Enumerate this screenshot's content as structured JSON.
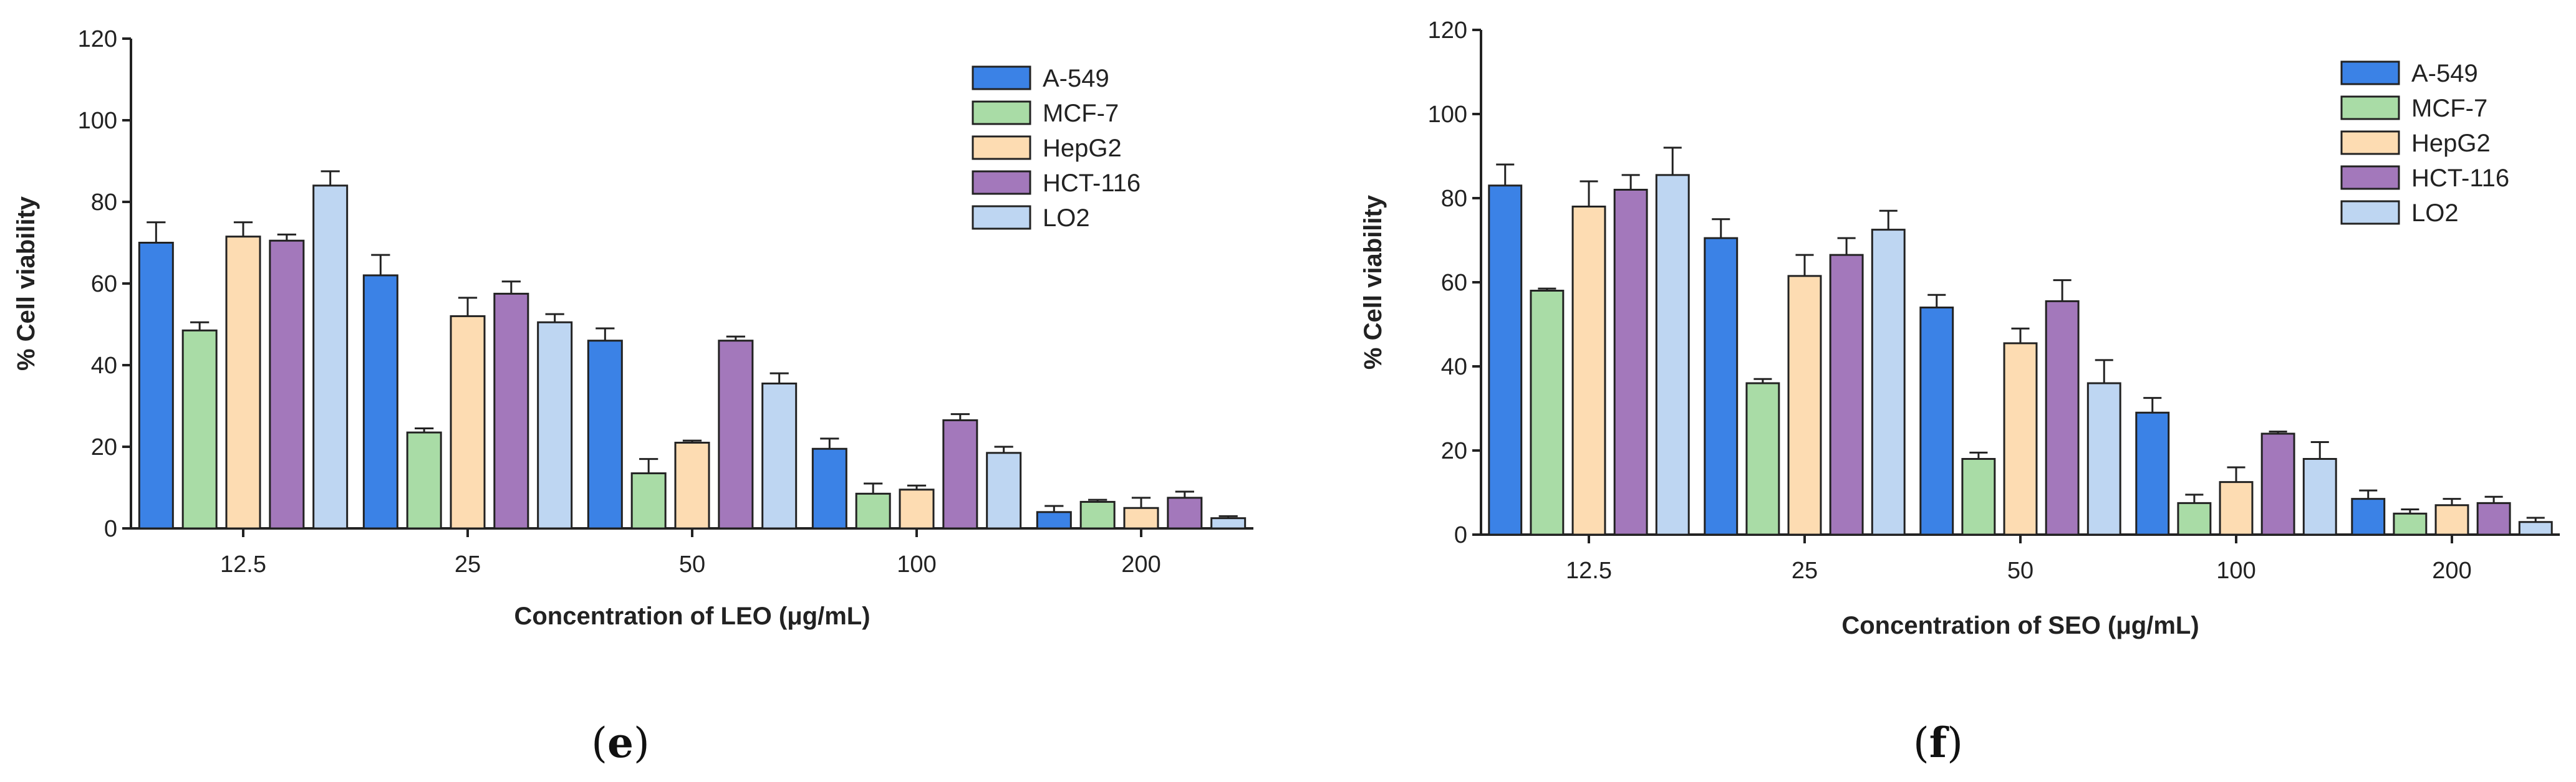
{
  "series_colors": {
    "A-549": "#3b82e6",
    "MCF-7": "#a9dca6",
    "HepG2": "#fddcb2",
    "HCT-116": "#a378bb",
    "LO2": "#bed6f2"
  },
  "chart_data": [
    {
      "type": "bar",
      "panel_label": "(e)",
      "title": "",
      "xlabel": "Concentration of LEO (μg/mL)",
      "ylabel": "% Cell viability",
      "ylim": [
        0,
        120
      ],
      "yticks": [
        0,
        20,
        40,
        60,
        80,
        100,
        120
      ],
      "categories": [
        "12.5",
        "25",
        "50",
        "100",
        "200"
      ],
      "legend_position": "top-right",
      "series": [
        {
          "name": "A-549",
          "values": [
            70,
            62,
            46,
            19.5,
            4
          ],
          "errors": [
            5,
            5,
            3,
            2.5,
            1.5
          ]
        },
        {
          "name": "MCF-7",
          "values": [
            48.5,
            23.5,
            13.5,
            8.5,
            6.5
          ],
          "errors": [
            2,
            1,
            3.5,
            2.5,
            0.5
          ]
        },
        {
          "name": "HepG2",
          "values": [
            71.5,
            52,
            21,
            9.5,
            5
          ],
          "errors": [
            3.5,
            4.5,
            0.5,
            1,
            2.5
          ]
        },
        {
          "name": "HCT-116",
          "values": [
            70.5,
            57.5,
            46,
            26.5,
            7.5
          ],
          "errors": [
            1.5,
            3,
            1,
            1.5,
            1.5
          ]
        },
        {
          "name": "LO2",
          "values": [
            84,
            50.5,
            35.5,
            18.5,
            2.5
          ],
          "errors": [
            3.5,
            2,
            2.5,
            1.5,
            0.5
          ]
        }
      ]
    },
    {
      "type": "bar",
      "panel_label": "(f)",
      "title": "",
      "xlabel": "Concentration of SEO (μg/mL)",
      "ylabel": "% Cell viability",
      "ylim": [
        0,
        120
      ],
      "yticks": [
        0,
        20,
        40,
        60,
        80,
        100,
        120
      ],
      "categories": [
        "12.5",
        "25",
        "50",
        "100",
        "200"
      ],
      "legend_position": "top-right",
      "series": [
        {
          "name": "A-549",
          "values": [
            83,
            70.5,
            54,
            29,
            8.5
          ],
          "errors": [
            5,
            4.5,
            3,
            3.5,
            2
          ]
        },
        {
          "name": "MCF-7",
          "values": [
            58,
            36,
            18,
            7.5,
            5
          ],
          "errors": [
            0.5,
            1,
            1.5,
            2,
            1
          ]
        },
        {
          "name": "HepG2",
          "values": [
            78,
            61.5,
            45.5,
            12.5,
            7
          ],
          "errors": [
            6,
            5,
            3.5,
            3.5,
            1.5
          ]
        },
        {
          "name": "HCT-116",
          "values": [
            82,
            66.5,
            55.5,
            24,
            7.5
          ],
          "errors": [
            3.5,
            4,
            5,
            0.5,
            1.5
          ]
        },
        {
          "name": "LO2",
          "values": [
            85.5,
            72.5,
            36,
            18,
            3
          ],
          "errors": [
            6.5,
            4.5,
            5.5,
            4,
            1
          ]
        }
      ]
    }
  ]
}
